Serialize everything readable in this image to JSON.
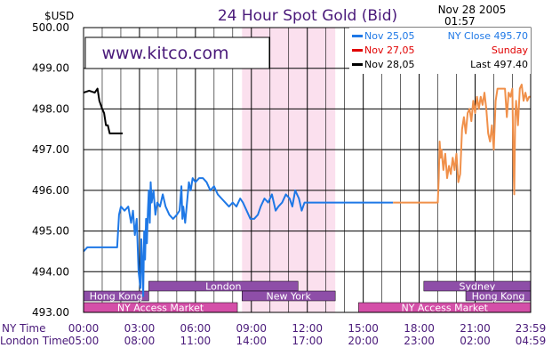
{
  "chart_data": {
    "type": "line",
    "title": "24 Hour Spot Gold (Bid)",
    "currency_label": "$USD",
    "timestamp_date": "Nov 28 2005",
    "timestamp_time": "01:57",
    "watermark": "www.kitco.com",
    "ylim": [
      493.0,
      500.0
    ],
    "y_ticks": [
      "500.00",
      "499.00",
      "498.00",
      "497.00",
      "496.00",
      "495.00",
      "494.00",
      "493.00"
    ],
    "y_tick_values": [
      500,
      499,
      498,
      497,
      496,
      495,
      494,
      493
    ],
    "x_range_hours": [
      0,
      23.98
    ],
    "ny_time_label": "NY Time",
    "london_time_label": "London Time",
    "ny_ticks": [
      {
        "t": 0,
        "label": "00:00"
      },
      {
        "t": 3,
        "label": "03:00"
      },
      {
        "t": 6,
        "label": "06:00"
      },
      {
        "t": 9,
        "label": "09:00"
      },
      {
        "t": 12,
        "label": "12:00"
      },
      {
        "t": 15,
        "label": "15:00"
      },
      {
        "t": 18,
        "label": "18:00"
      },
      {
        "t": 21,
        "label": "21:00"
      },
      {
        "t": 23.98,
        "label": "23:59"
      }
    ],
    "london_ticks": [
      {
        "t": 0,
        "label": "05:00"
      },
      {
        "t": 3,
        "label": "08:00"
      },
      {
        "t": 6,
        "label": "11:00"
      },
      {
        "t": 9,
        "label": "14:00"
      },
      {
        "t": 12,
        "label": "17:00"
      },
      {
        "t": 15,
        "label": "20:00"
      },
      {
        "t": 18,
        "label": "23:00"
      },
      {
        "t": 21,
        "label": "02:00"
      },
      {
        "t": 23.98,
        "label": "04:59"
      }
    ],
    "highlight_band": {
      "from": 8.5,
      "to": 13.5,
      "color": "#fbe0ee"
    },
    "legend": [
      {
        "date": "Nov 25,05",
        "text": "NY Close 495.70",
        "color": "#1e78e6",
        "text_color": "#1e78e6"
      },
      {
        "date": "Nov 27,05",
        "text": "Sunday",
        "color": "#e00000",
        "text_color": "#e00000"
      },
      {
        "date": "Nov 28,05",
        "text": "Last 497.40",
        "color": "#000000",
        "text_color": "#000000"
      }
    ],
    "markets": [
      {
        "name": "Hong Kong",
        "from": 0,
        "to": 3.5,
        "row": 1,
        "color": "#8e4ea8"
      },
      {
        "name": "London",
        "from": 3.5,
        "to": 11.5,
        "row": 0,
        "color": "#8e4ea8"
      },
      {
        "name": "New York",
        "from": 8.5,
        "to": 13.5,
        "row": 1,
        "color": "#8e4ea8"
      },
      {
        "name": "NY Access Market",
        "from": 0,
        "to": 8.25,
        "row": 2,
        "color": "#d44fa8"
      },
      {
        "name": "Sydney",
        "from": 18.25,
        "to": 23.98,
        "row": 0,
        "color": "#8e4ea8"
      },
      {
        "name": "Hong Kong",
        "from": 20.5,
        "to": 23.98,
        "row": 1,
        "color": "#8e4ea8"
      },
      {
        "name": "NY Access Market",
        "from": 14.75,
        "to": 23.98,
        "row": 2,
        "color": "#d44fa8"
      }
    ],
    "series": [
      {
        "name": "Nov 25,05",
        "color": "#1e78e6",
        "points": [
          [
            0,
            494.5
          ],
          [
            0.2,
            494.6
          ],
          [
            0.5,
            494.6
          ],
          [
            1,
            494.6
          ],
          [
            1.5,
            494.6
          ],
          [
            1.8,
            494.6
          ],
          [
            1.9,
            495.4
          ],
          [
            2.0,
            495.6
          ],
          [
            2.2,
            495.5
          ],
          [
            2.4,
            495.6
          ],
          [
            2.55,
            495.2
          ],
          [
            2.65,
            495.5
          ],
          [
            2.75,
            494.9
          ],
          [
            2.85,
            495.3
          ],
          [
            2.95,
            494.0
          ],
          [
            3.05,
            493.6
          ],
          [
            3.1,
            494.8
          ],
          [
            3.15,
            494.2
          ],
          [
            3.2,
            493.4
          ],
          [
            3.25,
            495.0
          ],
          [
            3.3,
            494.3
          ],
          [
            3.35,
            495.3
          ],
          [
            3.4,
            494.7
          ],
          [
            3.45,
            495.5
          ],
          [
            3.5,
            496.0
          ],
          [
            3.55,
            495.2
          ],
          [
            3.6,
            496.2
          ],
          [
            3.65,
            495.7
          ],
          [
            3.75,
            496.0
          ],
          [
            3.85,
            495.4
          ],
          [
            3.95,
            495.7
          ],
          [
            4.1,
            495.6
          ],
          [
            4.25,
            495.9
          ],
          [
            4.4,
            495.6
          ],
          [
            4.6,
            495.4
          ],
          [
            4.8,
            495.3
          ],
          [
            5.0,
            495.4
          ],
          [
            5.15,
            495.5
          ],
          [
            5.25,
            496.1
          ],
          [
            5.3,
            495.3
          ],
          [
            5.35,
            495.6
          ],
          [
            5.45,
            495.2
          ],
          [
            5.55,
            495.7
          ],
          [
            5.65,
            496.2
          ],
          [
            5.75,
            496.0
          ],
          [
            5.85,
            496.3
          ],
          [
            6.0,
            496.2
          ],
          [
            6.2,
            496.3
          ],
          [
            6.4,
            496.3
          ],
          [
            6.6,
            496.2
          ],
          [
            6.8,
            496.0
          ],
          [
            7.0,
            496.1
          ],
          [
            7.2,
            495.9
          ],
          [
            7.4,
            495.8
          ],
          [
            7.6,
            495.7
          ],
          [
            7.8,
            495.6
          ],
          [
            8.0,
            495.7
          ],
          [
            8.2,
            495.6
          ],
          [
            8.4,
            495.8
          ],
          [
            8.55,
            495.7
          ],
          [
            8.75,
            495.5
          ],
          [
            8.95,
            495.3
          ],
          [
            9.15,
            495.3
          ],
          [
            9.35,
            495.4
          ],
          [
            9.5,
            495.6
          ],
          [
            9.7,
            495.8
          ],
          [
            9.9,
            495.7
          ],
          [
            10.1,
            495.9
          ],
          [
            10.3,
            495.5
          ],
          [
            10.45,
            495.6
          ],
          [
            10.65,
            495.7
          ],
          [
            10.85,
            495.9
          ],
          [
            11.05,
            495.8
          ],
          [
            11.2,
            495.6
          ],
          [
            11.35,
            496.0
          ],
          [
            11.55,
            495.8
          ],
          [
            11.7,
            495.5
          ],
          [
            11.85,
            495.7
          ],
          [
            12.5,
            495.7
          ],
          [
            13.5,
            495.7
          ],
          [
            14.5,
            495.7
          ],
          [
            15.5,
            495.7
          ],
          [
            16.6,
            495.7
          ]
        ]
      },
      {
        "name": "Nov 27,05",
        "color": "#f0904a",
        "points": [
          [
            16.6,
            495.7
          ],
          [
            17.5,
            495.7
          ],
          [
            18.5,
            495.7
          ],
          [
            19.0,
            495.7
          ],
          [
            19.05,
            496.3
          ],
          [
            19.1,
            497.2
          ],
          [
            19.15,
            496.8
          ],
          [
            19.2,
            497.0
          ],
          [
            19.3,
            496.5
          ],
          [
            19.4,
            496.9
          ],
          [
            19.5,
            496.3
          ],
          [
            19.6,
            496.6
          ],
          [
            19.7,
            496.4
          ],
          [
            19.8,
            496.8
          ],
          [
            19.9,
            496.5
          ],
          [
            20.0,
            496.9
          ],
          [
            20.1,
            496.2
          ],
          [
            20.2,
            496.4
          ],
          [
            20.3,
            497.5
          ],
          [
            20.4,
            497.8
          ],
          [
            20.5,
            497.4
          ],
          [
            20.6,
            497.9
          ],
          [
            20.7,
            498.0
          ],
          [
            20.8,
            497.7
          ],
          [
            20.9,
            498.2
          ],
          [
            21.0,
            497.9
          ],
          [
            21.1,
            498.3
          ],
          [
            21.2,
            498.0
          ],
          [
            21.3,
            498.3
          ],
          [
            21.4,
            498.1
          ],
          [
            21.5,
            498.4
          ],
          [
            21.6,
            498.0
          ],
          [
            21.7,
            497.4
          ],
          [
            21.8,
            497.2
          ],
          [
            21.9,
            497.6
          ],
          [
            22.0,
            497.0
          ],
          [
            22.1,
            498.2
          ],
          [
            22.2,
            498.5
          ],
          [
            22.4,
            498.5
          ],
          [
            22.6,
            498.5
          ],
          [
            22.7,
            497.8
          ],
          [
            22.8,
            498.4
          ],
          [
            22.9,
            498.3
          ],
          [
            23.0,
            498.5
          ],
          [
            23.05,
            496.8
          ],
          [
            23.1,
            495.9
          ],
          [
            23.15,
            497.8
          ],
          [
            23.2,
            498.2
          ],
          [
            23.3,
            497.6
          ],
          [
            23.4,
            498.5
          ],
          [
            23.5,
            498.6
          ],
          [
            23.6,
            498.2
          ],
          [
            23.7,
            498.4
          ],
          [
            23.8,
            498.2
          ],
          [
            23.9,
            498.3
          ],
          [
            23.98,
            498.3
          ]
        ]
      },
      {
        "name": "Nov 28,05",
        "color": "#000000",
        "points": [
          [
            0,
            498.4
          ],
          [
            0.3,
            498.45
          ],
          [
            0.6,
            498.4
          ],
          [
            0.75,
            498.5
          ],
          [
            0.85,
            498.2
          ],
          [
            1.0,
            498.0
          ],
          [
            1.1,
            497.9
          ],
          [
            1.2,
            497.6
          ],
          [
            1.3,
            497.6
          ],
          [
            1.4,
            497.4
          ],
          [
            1.6,
            497.4
          ],
          [
            1.9,
            497.4
          ],
          [
            2.1,
            497.4
          ]
        ]
      }
    ]
  }
}
